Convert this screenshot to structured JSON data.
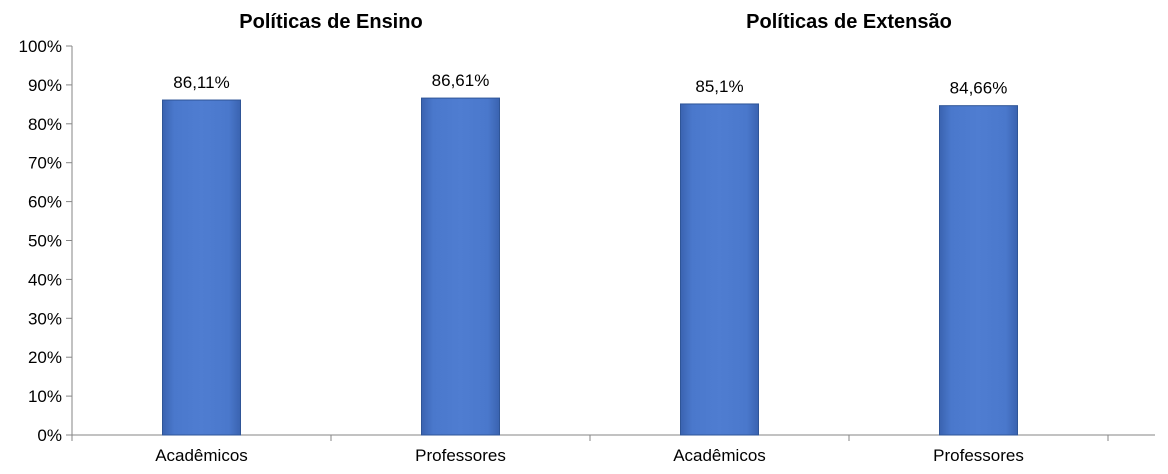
{
  "chart_data": {
    "type": "bar",
    "groups": [
      {
        "title": "Políticas de Ensino",
        "categories": [
          "Acadêmicos",
          "Professores"
        ],
        "values": [
          86.11,
          86.61
        ],
        "labels": [
          "86,11%",
          "86,61%"
        ]
      },
      {
        "title": "Políticas de Extensão",
        "categories": [
          "Acadêmicos",
          "Professores"
        ],
        "values": [
          85.1,
          84.66
        ],
        "labels": [
          "85,1%",
          "84,66%"
        ]
      }
    ],
    "ylim": [
      0,
      100
    ],
    "yticks": [
      0,
      10,
      20,
      30,
      40,
      50,
      60,
      70,
      80,
      90,
      100
    ],
    "ytick_labels": [
      "0%",
      "10%",
      "20%",
      "30%",
      "40%",
      "50%",
      "60%",
      "70%",
      "80%",
      "90%",
      "100%"
    ],
    "grid": false,
    "legend": "none",
    "bar_color": "#4472C4",
    "bar_edge_color": "#2F5597"
  }
}
